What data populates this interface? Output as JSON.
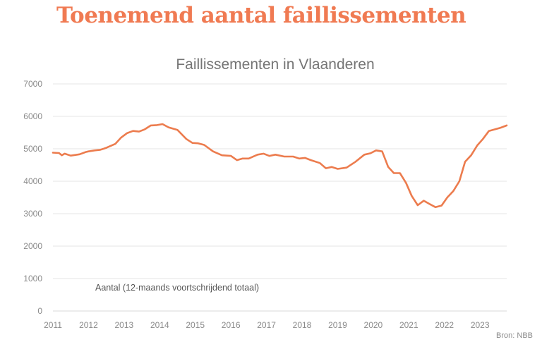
{
  "headline": "Toenemend aantal faillissementen",
  "source": "Bron: NBB",
  "colors": {
    "headline": "#f07a52",
    "line": "#ec7c4e"
  },
  "chart_data": {
    "type": "line",
    "title": "Faillissementen in Vlaanderen",
    "annotation": "Aantal (12-maands voortschrijdend totaal)",
    "xlabel": "",
    "ylabel": "",
    "xlim": [
      2011,
      2023.75
    ],
    "ylim": [
      0,
      7000
    ],
    "yticks": [
      0,
      1000,
      2000,
      3000,
      4000,
      5000,
      6000,
      7000
    ],
    "xticks": [
      2011,
      2012,
      2013,
      2014,
      2015,
      2016,
      2017,
      2018,
      2019,
      2020,
      2021,
      2022,
      2023
    ],
    "grid": true,
    "series": [
      {
        "name": "",
        "x": [
          2011.0,
          2011.17,
          2011.25,
          2011.33,
          2011.5,
          2011.75,
          2011.92,
          2012.0,
          2012.17,
          2012.33,
          2012.42,
          2012.5,
          2012.75,
          2012.92,
          2013.08,
          2013.25,
          2013.42,
          2013.58,
          2013.75,
          2013.92,
          2014.08,
          2014.25,
          2014.5,
          2014.75,
          2014.92,
          2015.08,
          2015.25,
          2015.5,
          2015.75,
          2016.0,
          2016.17,
          2016.33,
          2016.5,
          2016.75,
          2016.92,
          2017.08,
          2017.25,
          2017.5,
          2017.75,
          2017.92,
          2018.08,
          2018.25,
          2018.5,
          2018.67,
          2018.83,
          2019.0,
          2019.25,
          2019.5,
          2019.75,
          2019.92,
          2020.08,
          2020.25,
          2020.42,
          2020.58,
          2020.75,
          2020.92,
          2021.08,
          2021.25,
          2021.42,
          2021.58,
          2021.75,
          2021.92,
          2022.08,
          2022.25,
          2022.42,
          2022.58,
          2022.75,
          2022.92,
          2023.08,
          2023.25,
          2023.42,
          2023.58,
          2023.75
        ],
        "values": [
          4880,
          4870,
          4800,
          4850,
          4790,
          4830,
          4900,
          4920,
          4950,
          4970,
          5000,
          5030,
          5150,
          5350,
          5480,
          5550,
          5530,
          5600,
          5720,
          5730,
          5760,
          5660,
          5580,
          5300,
          5180,
          5170,
          5120,
          4920,
          4800,
          4780,
          4650,
          4700,
          4700,
          4820,
          4850,
          4780,
          4820,
          4760,
          4760,
          4700,
          4720,
          4650,
          4560,
          4400,
          4440,
          4380,
          4420,
          4600,
          4820,
          4860,
          4950,
          4920,
          4440,
          4250,
          4250,
          3950,
          3550,
          3260,
          3400,
          3300,
          3200,
          3250,
          3500,
          3700,
          4000,
          4600,
          4800,
          5100,
          5300,
          5550,
          5600,
          5650,
          5720
        ]
      }
    ]
  }
}
